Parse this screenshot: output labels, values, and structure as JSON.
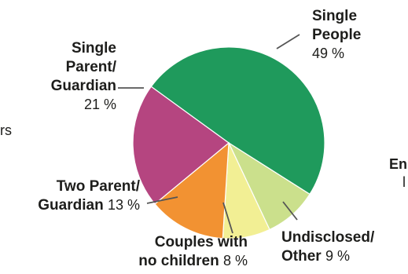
{
  "chart_data": {
    "type": "pie",
    "slices": [
      {
        "label": "Single People",
        "value": 49,
        "value_text": "49 %",
        "color": "#1f9a5c"
      },
      {
        "label": "Undisclosed/ Other",
        "value": 9,
        "value_text": "9 %",
        "color": "#cbe08c"
      },
      {
        "label": "Couples with no children",
        "value": 8,
        "value_text": "8 %",
        "color": "#f2ef94"
      },
      {
        "label": "Two Parent/ Guardian",
        "value": 13,
        "value_text": "13 %",
        "color": "#f29232"
      },
      {
        "label": "Single Parent/ Guardian",
        "value": 21,
        "value_text": "21 %",
        "color": "#b54580"
      }
    ],
    "label_lines": [
      {
        "slice": 0,
        "lines": [
          {
            "name": "Single",
            "pct": ""
          },
          {
            "name": "People",
            "pct": ""
          },
          {
            "name": "",
            "pct": "49 %"
          }
        ]
      },
      {
        "slice": 1,
        "lines": [
          {
            "name": "Undisclosed/",
            "pct": ""
          },
          {
            "name": "Other",
            "pct": "9 %"
          }
        ]
      },
      {
        "slice": 2,
        "lines": [
          {
            "name": "Couples with",
            "pct": ""
          },
          {
            "name": "no children",
            "pct": "8 %"
          }
        ]
      },
      {
        "slice": 3,
        "lines": [
          {
            "name": "Two Parent/",
            "pct": ""
          },
          {
            "name": "Guardian",
            "pct": "13 %"
          }
        ]
      },
      {
        "slice": 4,
        "lines": [
          {
            "name": "Single",
            "pct": ""
          },
          {
            "name": "Parent/",
            "pct": ""
          },
          {
            "name": "Guardian",
            "pct": ""
          },
          {
            "name": "",
            "pct": "21 %"
          }
        ]
      }
    ],
    "clipped_text": [
      {
        "id": "left-edge",
        "text": "rs",
        "bold": false
      },
      {
        "id": "right-edge-1",
        "text": "En",
        "bold": true
      },
      {
        "id": "right-edge-2",
        "text": "l",
        "bold": false
      }
    ]
  }
}
